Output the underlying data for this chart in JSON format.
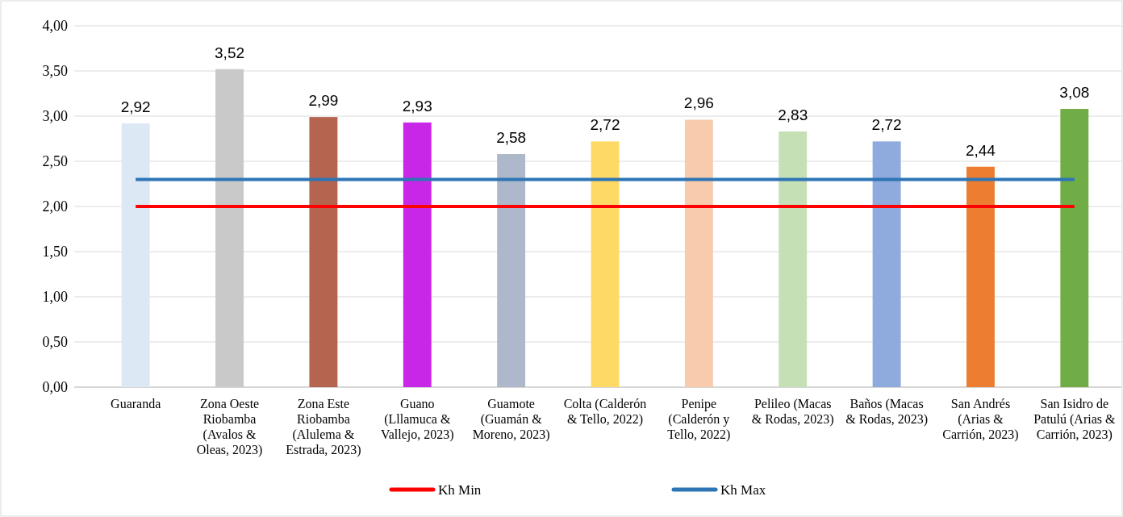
{
  "chart_data": {
    "type": "bar",
    "categories": [
      "Guaranda",
      "Zona Oeste Riobamba (Avalos & Oleas, 2023)",
      "Zona Este Riobamba (Alulema & Estrada, 2023)",
      "Guano (Lllamuca & Vallejo, 2023)",
      "Guamote (Guamán & Moreno, 2023)",
      "Colta (Calderón & Tello, 2022)",
      "Penipe (Calderón y Tello, 2022)",
      "Pelileo (Macas & Rodas, 2023)",
      "Baños (Macas & Rodas, 2023)",
      "San Andrés (Arias & Carrión, 2023)",
      "San Isidro de Patulú (Arias & Carrión, 2023)"
    ],
    "series": [
      {
        "values": [
          2.92,
          3.52,
          2.99,
          2.93,
          2.58,
          2.72,
          2.96,
          2.83,
          2.72,
          2.44,
          3.08
        ],
        "colors": [
          "#dde8f5",
          "#c9c9c9",
          "#b5644f",
          "#c927e8",
          "#adb9ca",
          "#ffd966",
          "#f8cbad",
          "#c5e0b4",
          "#8faadc",
          "#ed7d31",
          "#70ad47"
        ],
        "value_labels": [
          "2,92",
          "3,52",
          "2,99",
          "2,93",
          "2,58",
          "2,72",
          "2,96",
          "2,83",
          "2,72",
          "2,44",
          "3,08"
        ]
      },
      {
        "type": "line",
        "name": "Kh Min",
        "color": "#ff0000",
        "values": [
          2,
          2,
          2,
          2,
          2,
          2,
          2,
          2,
          2,
          2,
          2
        ]
      },
      {
        "type": "line",
        "name": "Kh Max",
        "color": "#2e75b6",
        "values": [
          2.3,
          2.3,
          2.3,
          2.3,
          2.3,
          2.3,
          2.3,
          2.3,
          2.3,
          2.3,
          2.3
        ]
      }
    ],
    "ylim": [
      0,
      4
    ],
    "yticks": [
      {
        "value": 0,
        "label": "0,00"
      },
      {
        "value": 0.5,
        "label": "0,50"
      },
      {
        "value": 1,
        "label": "1,00"
      },
      {
        "value": 1.5,
        "label": "1,50"
      },
      {
        "value": 2,
        "label": "2,00"
      },
      {
        "value": 2.5,
        "label": "2,50"
      },
      {
        "value": 3,
        "label": "3,00"
      },
      {
        "value": 3.5,
        "label": "3,50"
      },
      {
        "value": 4,
        "label": "4,00"
      }
    ],
    "grid": "y",
    "legend": "bottom"
  }
}
